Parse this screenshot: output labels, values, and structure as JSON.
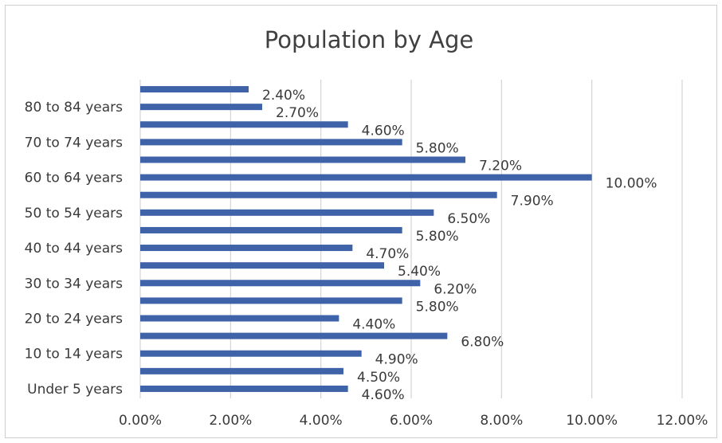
{
  "chart_data": {
    "type": "bar",
    "orientation": "horizontal",
    "title": "Population by Age",
    "xlabel": "",
    "ylabel": "",
    "categories": [
      "Under 5 years",
      "",
      "10 to 14 years",
      "",
      "20 to 24 years",
      "",
      "30 to 34 years",
      "",
      "40 to 44 years",
      "",
      "50 to 54 years",
      "",
      "60 to 64 years",
      "",
      "70 to 74 years",
      "",
      "80 to 84 years",
      ""
    ],
    "values": [
      4.6,
      4.5,
      4.9,
      6.8,
      4.4,
      5.8,
      6.2,
      5.4,
      4.7,
      5.8,
      6.5,
      7.9,
      10.0,
      7.2,
      5.8,
      4.6,
      2.7,
      2.4
    ],
    "data_labels": [
      "4.60%",
      "4.50%",
      "4.90%",
      "6.80%",
      "4.40%",
      "5.80%",
      "6.20%",
      "5.40%",
      "4.70%",
      "5.80%",
      "6.50%",
      "7.90%",
      "10.00%",
      "7.20%",
      "5.80%",
      "4.60%",
      "2.70%",
      "2.40%"
    ],
    "xlim": [
      0,
      12
    ],
    "xticks": [
      0,
      2,
      4,
      6,
      8,
      10,
      12
    ],
    "xtick_labels": [
      "0.00%",
      "2.00%",
      "4.00%",
      "6.00%",
      "8.00%",
      "10.00%",
      "12.00%"
    ],
    "bar_color": "#3f63a8",
    "grid": "vertical",
    "legend": "none"
  }
}
